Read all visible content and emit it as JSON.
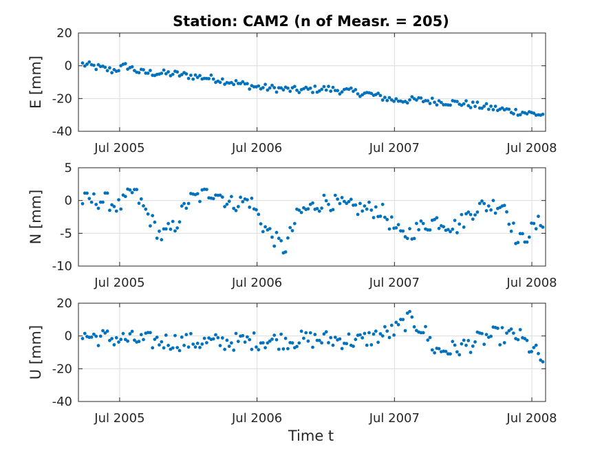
{
  "chart_data": {
    "type": "scatter",
    "title": "Station: CAM2 (n of Measr. = 205)",
    "xlabel": "Time t",
    "xlim": [
      2005.2,
      2008.6
    ],
    "x_ticks": [
      2005.5,
      2006.5,
      2007.5,
      2008.5
    ],
    "x_tick_labels": [
      "Jul 2005",
      "Jul 2006",
      "Jul 2007",
      "Jul 2008"
    ],
    "grid": true,
    "marker_color": "#0072bd",
    "panels": [
      {
        "ylabel": "E [mm]",
        "ylim": [
          -40,
          20
        ],
        "y_ticks": [
          -40,
          -20,
          0,
          20
        ],
        "series": [
          {
            "x": [],
            "y": []
          }
        ]
      },
      {
        "ylabel": "N [mm]",
        "ylim": [
          -10,
          5
        ],
        "y_ticks": [
          -10,
          -5,
          0,
          5
        ],
        "series": [
          {
            "x": [],
            "y": []
          }
        ]
      },
      {
        "ylabel": "U [mm]",
        "ylim": [
          -40,
          20
        ],
        "y_ticks": [
          -40,
          -20,
          0,
          20
        ],
        "series": [
          {
            "x": [],
            "y": []
          }
        ]
      }
    ]
  }
}
